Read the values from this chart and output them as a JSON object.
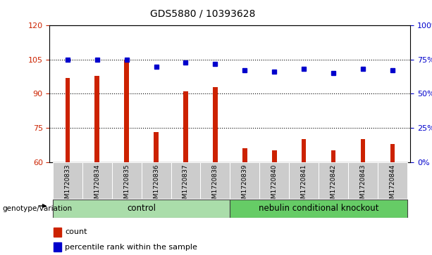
{
  "title": "GDS5880 / 10393628",
  "samples": [
    "GSM1720833",
    "GSM1720834",
    "GSM1720835",
    "GSM1720836",
    "GSM1720837",
    "GSM1720838",
    "GSM1720839",
    "GSM1720840",
    "GSM1720841",
    "GSM1720842",
    "GSM1720843",
    "GSM1720844"
  ],
  "counts": [
    97,
    98,
    105,
    73,
    91,
    93,
    66,
    65,
    70,
    65,
    70,
    68
  ],
  "percentiles": [
    75,
    75,
    75,
    70,
    73,
    72,
    67,
    66,
    68,
    65,
    68,
    67
  ],
  "ylim_left": [
    60,
    120
  ],
  "ylim_right": [
    0,
    100
  ],
  "yticks_left": [
    60,
    75,
    90,
    105,
    120
  ],
  "yticks_right": [
    0,
    25,
    50,
    75,
    100
  ],
  "bar_color": "#cc2200",
  "dot_color": "#0000cc",
  "control_color": "#aaddaa",
  "knockout_color": "#66cc66",
  "tick_bg_color": "#cccccc",
  "group_labels": [
    "control",
    "nebulin conditional knockout"
  ],
  "genotype_label": "genotype/variation",
  "legend": [
    "count",
    "percentile rank within the sample"
  ],
  "bar_width": 0.15
}
